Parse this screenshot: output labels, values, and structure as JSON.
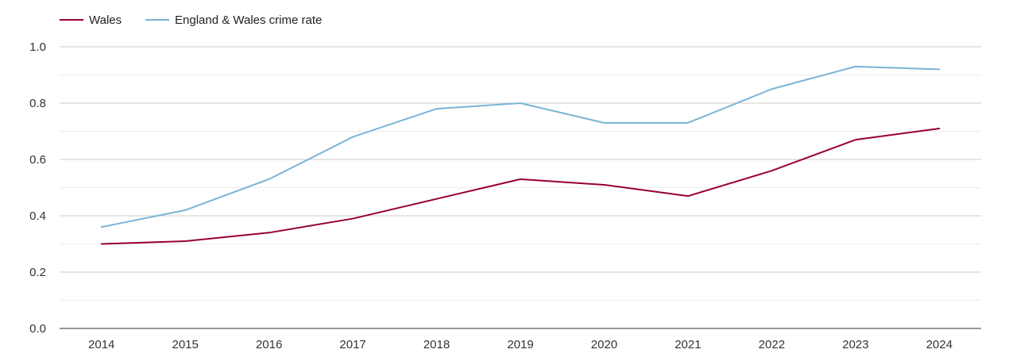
{
  "chart_data": {
    "type": "line",
    "x": [
      "2014",
      "2015",
      "2016",
      "2017",
      "2018",
      "2019",
      "2020",
      "2021",
      "2022",
      "2023",
      "2024"
    ],
    "series": [
      {
        "name": "Wales",
        "color": "#99002f",
        "values": [
          0.3,
          0.31,
          0.34,
          0.39,
          0.46,
          0.53,
          0.51,
          0.47,
          0.56,
          0.67,
          0.71
        ]
      },
      {
        "name": "England & Wales crime rate",
        "color": "#7ab4d6",
        "values": [
          0.36,
          0.42,
          0.53,
          0.68,
          0.78,
          0.8,
          0.73,
          0.73,
          0.85,
          0.93,
          0.92
        ]
      }
    ],
    "y_ticks": [
      "0.0",
      "0.2",
      "0.4",
      "0.6",
      "0.8",
      "1.0"
    ],
    "ylim": [
      0,
      1.0
    ],
    "grid": true,
    "legend_position": "top-left"
  }
}
